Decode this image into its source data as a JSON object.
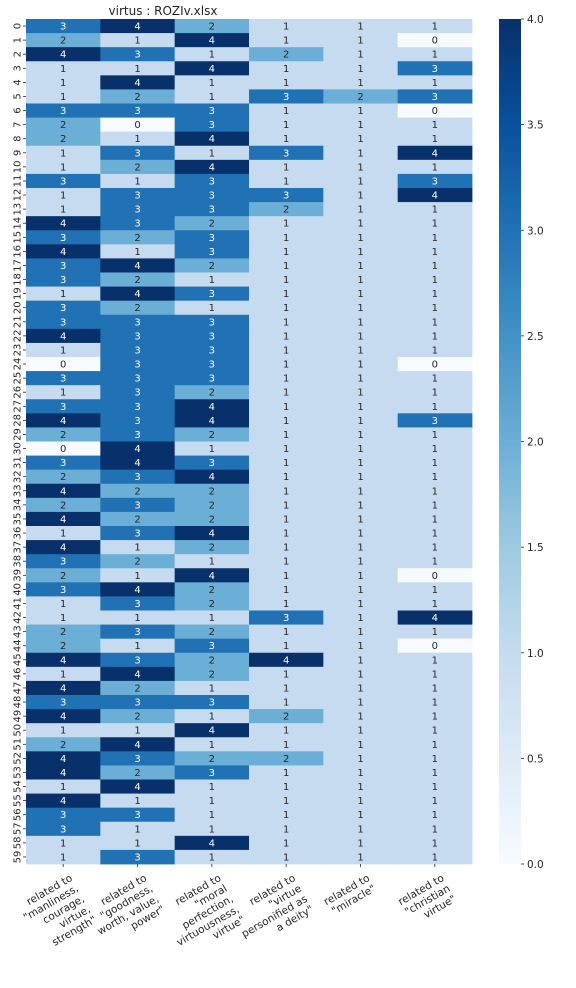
{
  "chart_data": {
    "type": "heatmap",
    "title": "virtus : ROZIv.xlsx",
    "row_labels": [
      "0",
      "1",
      "2",
      "3",
      "4",
      "5",
      "6",
      "7",
      "8",
      "9",
      "10",
      "11",
      "12",
      "13",
      "14",
      "15",
      "16",
      "17",
      "18",
      "19",
      "20",
      "21",
      "22",
      "23",
      "24",
      "25",
      "26",
      "27",
      "28",
      "29",
      "30",
      "31",
      "32",
      "33",
      "34",
      "35",
      "36",
      "37",
      "38",
      "39",
      "40",
      "41",
      "42",
      "43",
      "44",
      "45",
      "46",
      "47",
      "48",
      "49",
      "50",
      "51",
      "52",
      "53",
      "54",
      "55",
      "56",
      "57",
      "58",
      "59"
    ],
    "columns": [
      [
        "related to",
        "\"manliness,",
        "courage,",
        "virtue,",
        "strength\""
      ],
      [
        "related to",
        "\"goodness,",
        "worth, value,",
        "power\""
      ],
      [
        "related to",
        "\"moral",
        "perfection,",
        "virtuousness,",
        "virtue\""
      ],
      [
        "related to",
        "\"virtue",
        "personified as",
        "a deity\""
      ],
      [
        "related to",
        "\"miracle\""
      ],
      [
        "related to",
        "\"christian",
        "virtue\""
      ]
    ],
    "values": [
      [
        3,
        4,
        2,
        1,
        1,
        1
      ],
      [
        2,
        1,
        4,
        1,
        1,
        0
      ],
      [
        4,
        3,
        1,
        2,
        1,
        1
      ],
      [
        1,
        1,
        4,
        1,
        1,
        3
      ],
      [
        1,
        4,
        1,
        1,
        1,
        1
      ],
      [
        1,
        2,
        1,
        3,
        2,
        3
      ],
      [
        3,
        3,
        3,
        1,
        1,
        0
      ],
      [
        2,
        0,
        3,
        1,
        1,
        1
      ],
      [
        2,
        1,
        4,
        1,
        1,
        1
      ],
      [
        1,
        3,
        1,
        3,
        1,
        4
      ],
      [
        1,
        2,
        4,
        1,
        1,
        1
      ],
      [
        3,
        1,
        3,
        1,
        1,
        3
      ],
      [
        1,
        3,
        3,
        3,
        1,
        4
      ],
      [
        1,
        3,
        3,
        2,
        1,
        1
      ],
      [
        4,
        3,
        2,
        1,
        1,
        1
      ],
      [
        3,
        2,
        3,
        1,
        1,
        1
      ],
      [
        4,
        1,
        3,
        1,
        1,
        1
      ],
      [
        3,
        4,
        2,
        1,
        1,
        1
      ],
      [
        3,
        2,
        1,
        1,
        1,
        1
      ],
      [
        1,
        4,
        3,
        1,
        1,
        1
      ],
      [
        3,
        2,
        1,
        1,
        1,
        1
      ],
      [
        3,
        3,
        3,
        1,
        1,
        1
      ],
      [
        4,
        3,
        3,
        1,
        1,
        1
      ],
      [
        1,
        3,
        3,
        1,
        1,
        1
      ],
      [
        0,
        3,
        3,
        1,
        1,
        0
      ],
      [
        3,
        3,
        3,
        1,
        1,
        1
      ],
      [
        1,
        3,
        2,
        1,
        1,
        1
      ],
      [
        3,
        3,
        4,
        1,
        1,
        1
      ],
      [
        4,
        3,
        4,
        1,
        1,
        3
      ],
      [
        2,
        3,
        2,
        1,
        1,
        1
      ],
      [
        0,
        4,
        1,
        1,
        1,
        1
      ],
      [
        3,
        4,
        3,
        1,
        1,
        1
      ],
      [
        2,
        3,
        4,
        1,
        1,
        1
      ],
      [
        4,
        2,
        2,
        1,
        1,
        1
      ],
      [
        2,
        3,
        2,
        1,
        1,
        1
      ],
      [
        4,
        2,
        2,
        1,
        1,
        1
      ],
      [
        1,
        3,
        4,
        1,
        1,
        1
      ],
      [
        4,
        1,
        2,
        1,
        1,
        1
      ],
      [
        3,
        2,
        1,
        1,
        1,
        1
      ],
      [
        2,
        1,
        4,
        1,
        1,
        0
      ],
      [
        3,
        4,
        2,
        1,
        1,
        1
      ],
      [
        1,
        3,
        2,
        1,
        1,
        1
      ],
      [
        1,
        1,
        1,
        3,
        1,
        4
      ],
      [
        2,
        3,
        2,
        1,
        1,
        1
      ],
      [
        2,
        1,
        3,
        1,
        1,
        0
      ],
      [
        4,
        3,
        2,
        4,
        1,
        1
      ],
      [
        1,
        4,
        2,
        1,
        1,
        1
      ],
      [
        4,
        2,
        1,
        1,
        1,
        1
      ],
      [
        3,
        3,
        3,
        1,
        1,
        1
      ],
      [
        4,
        2,
        1,
        2,
        1,
        1
      ],
      [
        1,
        1,
        4,
        1,
        1,
        1
      ],
      [
        2,
        4,
        1,
        1,
        1,
        1
      ],
      [
        4,
        3,
        2,
        2,
        1,
        1
      ],
      [
        4,
        2,
        3,
        1,
        1,
        1
      ],
      [
        1,
        4,
        1,
        1,
        1,
        1
      ],
      [
        4,
        1,
        1,
        1,
        1,
        1
      ],
      [
        3,
        3,
        1,
        1,
        1,
        1
      ],
      [
        3,
        1,
        1,
        1,
        1,
        1
      ],
      [
        1,
        1,
        4,
        1,
        1,
        1
      ],
      [
        1,
        3,
        1,
        1,
        1,
        1
      ]
    ],
    "vmin": 0,
    "vmax": 4,
    "colormap": "Blues",
    "colorbar_ticks": [
      "0.0",
      "0.5",
      "1.0",
      "1.5",
      "2.0",
      "2.5",
      "3.0",
      "3.5",
      "4.0"
    ],
    "colorbar_tick_values": [
      0,
      0.5,
      1,
      1.5,
      2,
      2.5,
      3,
      3.5,
      4
    ]
  },
  "colors": {
    "stops": [
      "#f7fbff",
      "#deebf7",
      "#c6dbef",
      "#9ecae1",
      "#6baed6",
      "#4292c6",
      "#2171b5",
      "#08519c",
      "#08306b"
    ],
    "text_dark": "#262626",
    "text_light": "#ffffff"
  }
}
